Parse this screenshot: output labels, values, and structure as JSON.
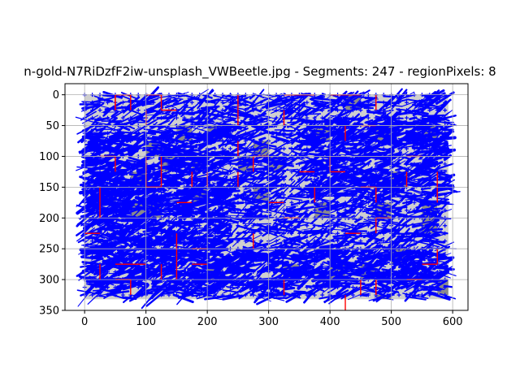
{
  "chart_data": {
    "type": "scatter",
    "title": "n-gold-N7RiDzfF2iw-unsplash_VWBeetle.jpg - Segments: 247 - regionPixels: 8",
    "xlabel": "",
    "ylabel": "",
    "xlim": [
      -32,
      625
    ],
    "ylim": [
      350,
      -18
    ],
    "y_inverted": true,
    "grid": true,
    "x_ticks": [
      0,
      100,
      200,
      300,
      400,
      500,
      600
    ],
    "y_ticks": [
      0,
      50,
      100,
      150,
      200,
      250,
      300,
      350
    ],
    "image_extent": {
      "x": [
        0,
        593
      ],
      "y": [
        0,
        332
      ]
    },
    "grid_step": 25,
    "colors": {
      "blue": "#0000ff",
      "red": "#ff0000",
      "tile": "#cfcfcf",
      "hatch": "#8a8a8a",
      "grid": "#b0b0b0"
    }
  }
}
